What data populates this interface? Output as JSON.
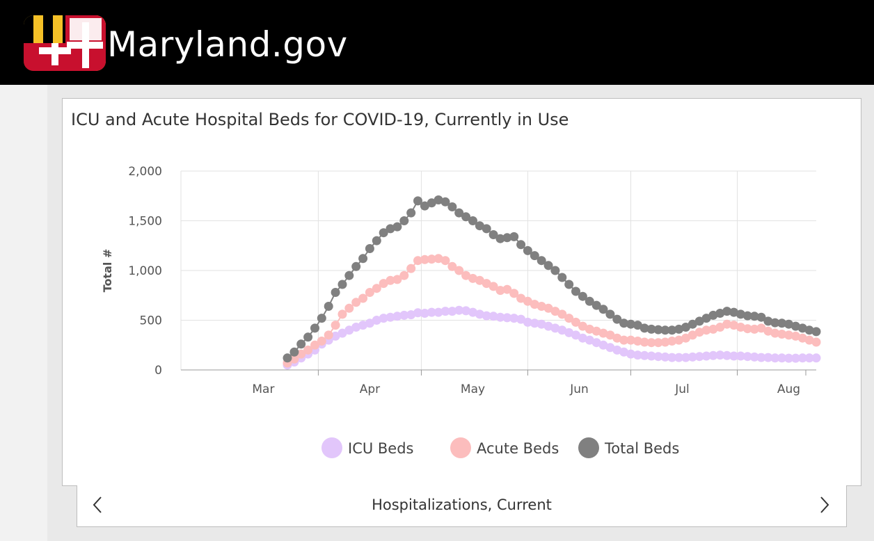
{
  "header": {
    "site_title": "Maryland.gov"
  },
  "footer": {
    "label": "Hospitalizations, Current"
  },
  "colors": {
    "icu": "#e2c6fb",
    "acute": "#fcbdbd",
    "total": "#808080",
    "grid": "#e2e2e2",
    "axis": "#999999"
  },
  "icons": {
    "prev": "chevron-left-icon",
    "next": "chevron-right-icon",
    "logo": "maryland-flag-icon"
  },
  "chart_data": {
    "type": "scatter",
    "title": "ICU and Acute Hospital Beds for COVID-19, Currently in Use",
    "xlabel": "",
    "ylabel": "Total #",
    "ylim": [
      0,
      2000
    ],
    "yticks": [
      {
        "value": 0,
        "label": "0"
      },
      {
        "value": 500,
        "label": "500"
      },
      {
        "value": 1000,
        "label": "1,000"
      },
      {
        "value": 1500,
        "label": "1,500"
      },
      {
        "value": 2000,
        "label": "2,000"
      }
    ],
    "x_domain_days": [
      -9,
      176
    ],
    "x_month_boundaries_days": [
      31,
      61,
      92,
      122,
      153
    ],
    "xticks": [
      {
        "day": 15,
        "label": "Mar"
      },
      {
        "day": 46,
        "label": "Apr"
      },
      {
        "day": 76,
        "label": "May"
      },
      {
        "day": 107,
        "label": "Jun"
      },
      {
        "day": 137,
        "label": "Jul"
      },
      {
        "day": 168,
        "label": "Aug"
      }
    ],
    "legend_position": "bottom-center",
    "series": [
      {
        "name": "ICU Beds",
        "key": "icu",
        "points": [
          [
            22,
            50
          ],
          [
            24,
            80
          ],
          [
            26,
            120
          ],
          [
            28,
            160
          ],
          [
            30,
            200
          ],
          [
            32,
            260
          ],
          [
            34,
            300
          ],
          [
            36,
            340
          ],
          [
            38,
            370
          ],
          [
            40,
            400
          ],
          [
            42,
            430
          ],
          [
            44,
            450
          ],
          [
            46,
            470
          ],
          [
            48,
            500
          ],
          [
            50,
            520
          ],
          [
            52,
            530
          ],
          [
            54,
            540
          ],
          [
            56,
            550
          ],
          [
            58,
            555
          ],
          [
            60,
            575
          ],
          [
            62,
            570
          ],
          [
            64,
            580
          ],
          [
            66,
            580
          ],
          [
            68,
            590
          ],
          [
            70,
            590
          ],
          [
            72,
            600
          ],
          [
            74,
            595
          ],
          [
            76,
            580
          ],
          [
            78,
            560
          ],
          [
            80,
            545
          ],
          [
            82,
            540
          ],
          [
            84,
            530
          ],
          [
            86,
            525
          ],
          [
            88,
            520
          ],
          [
            90,
            510
          ],
          [
            92,
            480
          ],
          [
            94,
            470
          ],
          [
            96,
            460
          ],
          [
            98,
            440
          ],
          [
            100,
            420
          ],
          [
            102,
            400
          ],
          [
            104,
            375
          ],
          [
            106,
            350
          ],
          [
            108,
            320
          ],
          [
            110,
            300
          ],
          [
            112,
            275
          ],
          [
            114,
            250
          ],
          [
            116,
            225
          ],
          [
            118,
            200
          ],
          [
            120,
            180
          ],
          [
            122,
            160
          ],
          [
            124,
            150
          ],
          [
            126,
            145
          ],
          [
            128,
            140
          ],
          [
            130,
            135
          ],
          [
            132,
            130
          ],
          [
            134,
            125
          ],
          [
            136,
            125
          ],
          [
            138,
            125
          ],
          [
            140,
            130
          ],
          [
            142,
            135
          ],
          [
            144,
            140
          ],
          [
            146,
            145
          ],
          [
            148,
            150
          ],
          [
            150,
            145
          ],
          [
            152,
            140
          ],
          [
            154,
            140
          ],
          [
            156,
            135
          ],
          [
            158,
            130
          ],
          [
            160,
            125
          ],
          [
            162,
            125
          ],
          [
            164,
            120
          ],
          [
            166,
            120
          ],
          [
            168,
            118
          ],
          [
            170,
            118
          ],
          [
            172,
            120
          ],
          [
            174,
            120
          ],
          [
            176,
            120
          ]
        ]
      },
      {
        "name": "Acute Beds",
        "key": "acute",
        "points": [
          [
            22,
            70
          ],
          [
            24,
            110
          ],
          [
            26,
            160
          ],
          [
            28,
            200
          ],
          [
            30,
            250
          ],
          [
            32,
            290
          ],
          [
            34,
            350
          ],
          [
            36,
            450
          ],
          [
            38,
            560
          ],
          [
            40,
            620
          ],
          [
            42,
            680
          ],
          [
            44,
            720
          ],
          [
            46,
            780
          ],
          [
            48,
            820
          ],
          [
            50,
            870
          ],
          [
            52,
            900
          ],
          [
            54,
            910
          ],
          [
            56,
            950
          ],
          [
            58,
            1020
          ],
          [
            60,
            1100
          ],
          [
            62,
            1110
          ],
          [
            64,
            1115
          ],
          [
            66,
            1120
          ],
          [
            68,
            1100
          ],
          [
            70,
            1040
          ],
          [
            72,
            1000
          ],
          [
            74,
            950
          ],
          [
            76,
            920
          ],
          [
            78,
            900
          ],
          [
            80,
            870
          ],
          [
            82,
            840
          ],
          [
            84,
            800
          ],
          [
            86,
            810
          ],
          [
            88,
            770
          ],
          [
            90,
            720
          ],
          [
            92,
            690
          ],
          [
            94,
            660
          ],
          [
            96,
            640
          ],
          [
            98,
            620
          ],
          [
            100,
            590
          ],
          [
            102,
            560
          ],
          [
            104,
            520
          ],
          [
            106,
            480
          ],
          [
            108,
            440
          ],
          [
            110,
            410
          ],
          [
            112,
            390
          ],
          [
            114,
            370
          ],
          [
            116,
            350
          ],
          [
            118,
            320
          ],
          [
            120,
            300
          ],
          [
            122,
            300
          ],
          [
            124,
            290
          ],
          [
            126,
            280
          ],
          [
            128,
            275
          ],
          [
            130,
            275
          ],
          [
            132,
            280
          ],
          [
            134,
            290
          ],
          [
            136,
            300
          ],
          [
            138,
            320
          ],
          [
            140,
            350
          ],
          [
            142,
            380
          ],
          [
            144,
            400
          ],
          [
            146,
            410
          ],
          [
            148,
            430
          ],
          [
            150,
            460
          ],
          [
            152,
            450
          ],
          [
            154,
            430
          ],
          [
            156,
            415
          ],
          [
            158,
            410
          ],
          [
            160,
            420
          ],
          [
            162,
            390
          ],
          [
            164,
            370
          ],
          [
            166,
            360
          ],
          [
            168,
            350
          ],
          [
            170,
            340
          ],
          [
            172,
            320
          ],
          [
            174,
            300
          ],
          [
            176,
            280
          ]
        ]
      },
      {
        "name": "Total Beds",
        "key": "total",
        "points": [
          [
            22,
            120
          ],
          [
            24,
            180
          ],
          [
            26,
            260
          ],
          [
            28,
            330
          ],
          [
            30,
            420
          ],
          [
            32,
            520
          ],
          [
            34,
            640
          ],
          [
            36,
            780
          ],
          [
            38,
            860
          ],
          [
            40,
            950
          ],
          [
            42,
            1040
          ],
          [
            44,
            1120
          ],
          [
            46,
            1220
          ],
          [
            48,
            1300
          ],
          [
            50,
            1380
          ],
          [
            52,
            1420
          ],
          [
            54,
            1440
          ],
          [
            56,
            1500
          ],
          [
            58,
            1580
          ],
          [
            60,
            1700
          ],
          [
            62,
            1650
          ],
          [
            64,
            1680
          ],
          [
            66,
            1710
          ],
          [
            68,
            1690
          ],
          [
            70,
            1640
          ],
          [
            72,
            1580
          ],
          [
            74,
            1540
          ],
          [
            76,
            1500
          ],
          [
            78,
            1450
          ],
          [
            80,
            1420
          ],
          [
            82,
            1360
          ],
          [
            84,
            1320
          ],
          [
            86,
            1330
          ],
          [
            88,
            1340
          ],
          [
            90,
            1260
          ],
          [
            92,
            1200
          ],
          [
            94,
            1150
          ],
          [
            96,
            1100
          ],
          [
            98,
            1050
          ],
          [
            100,
            1000
          ],
          [
            102,
            930
          ],
          [
            104,
            860
          ],
          [
            106,
            790
          ],
          [
            108,
            740
          ],
          [
            110,
            690
          ],
          [
            112,
            650
          ],
          [
            114,
            610
          ],
          [
            116,
            560
          ],
          [
            118,
            510
          ],
          [
            120,
            470
          ],
          [
            122,
            460
          ],
          [
            124,
            450
          ],
          [
            126,
            420
          ],
          [
            128,
            410
          ],
          [
            130,
            405
          ],
          [
            132,
            400
          ],
          [
            134,
            400
          ],
          [
            136,
            410
          ],
          [
            138,
            430
          ],
          [
            140,
            460
          ],
          [
            142,
            490
          ],
          [
            144,
            520
          ],
          [
            146,
            550
          ],
          [
            148,
            570
          ],
          [
            150,
            590
          ],
          [
            152,
            580
          ],
          [
            154,
            560
          ],
          [
            156,
            545
          ],
          [
            158,
            540
          ],
          [
            160,
            530
          ],
          [
            162,
            490
          ],
          [
            164,
            475
          ],
          [
            166,
            470
          ],
          [
            168,
            460
          ],
          [
            170,
            440
          ],
          [
            172,
            420
          ],
          [
            174,
            400
          ],
          [
            176,
            385
          ]
        ]
      }
    ]
  }
}
